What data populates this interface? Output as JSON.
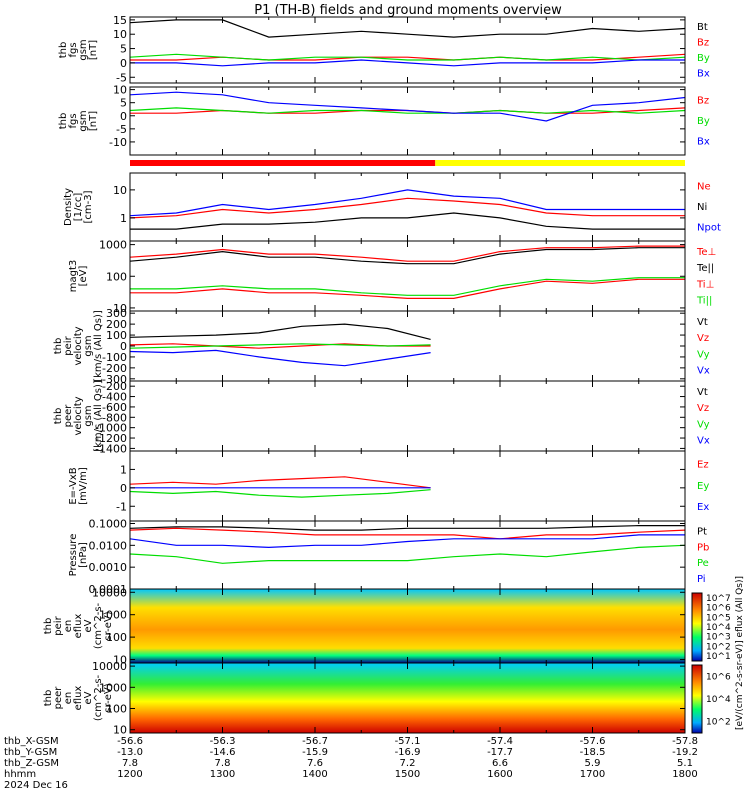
{
  "title": "P1 (TH-B) fields and ground moments overview",
  "colors": {
    "black": "#000000",
    "red": "#ff0000",
    "green": "#00dd00",
    "blue": "#0000ff",
    "yellow": "#ffff00"
  },
  "panels": [
    {
      "id": "fgs-btot",
      "ylabel": [
        "thb",
        "fgs",
        "gsm",
        "[nT]"
      ],
      "yticks": [
        "15",
        "10",
        "5",
        "0",
        "-5"
      ],
      "ticknums": [
        15,
        10,
        5,
        0,
        -5
      ],
      "ylim": [
        -7,
        16
      ],
      "legend": [
        {
          "text": "Bt",
          "color": "#000000"
        },
        {
          "text": "Bz",
          "color": "#ff0000"
        },
        {
          "text": "By",
          "color": "#00dd00"
        },
        {
          "text": "Bx",
          "color": "#0000ff"
        }
      ]
    },
    {
      "id": "fgs-comp",
      "ylabel": [
        "thb",
        "fgs",
        "gsm",
        "[nT]"
      ],
      "yticks": [
        "10",
        "5",
        "0",
        "-5",
        "-10"
      ],
      "ticknums": [
        10,
        5,
        0,
        -5,
        -10
      ],
      "ylim": [
        -15,
        11
      ],
      "legend": [
        {
          "text": "Bz",
          "color": "#ff0000"
        },
        {
          "text": "By",
          "color": "#00dd00"
        },
        {
          "text": "Bx",
          "color": "#0000ff"
        }
      ]
    },
    {
      "id": "density",
      "ylabel": [
        "Density",
        "[1/cc]",
        "[cm-3]"
      ],
      "yticks": [
        "10",
        "1"
      ],
      "ticknums": [
        10,
        1
      ],
      "log": true,
      "ylim": [
        0.15,
        40
      ],
      "legend": [
        {
          "text": "Ne",
          "color": "#ff0000"
        },
        {
          "text": "Ni",
          "color": "#000000"
        },
        {
          "text": "Npot",
          "color": "#0000ff"
        }
      ]
    },
    {
      "id": "temp",
      "ylabel": [
        "magt3",
        "[eV]"
      ],
      "yticks": [
        "1000",
        "100",
        "10"
      ],
      "ticknums": [
        1000,
        100,
        10
      ],
      "log": true,
      "ylim": [
        8,
        1300
      ],
      "legend": [
        {
          "text": "Te⊥",
          "color": "#ff0000"
        },
        {
          "text": "Te||",
          "color": "#000000"
        },
        {
          "text": "Ti⊥",
          "color": "#ff0000"
        },
        {
          "text": "Ti||",
          "color": "#00dd00"
        }
      ]
    },
    {
      "id": "peir-vel",
      "ylabel": [
        "thb",
        "peir",
        "velocity",
        "gsm",
        "[km/s (All Qs)]"
      ],
      "yticks": [
        "300",
        "200",
        "100",
        "0",
        "-100",
        "-200",
        "-300"
      ],
      "ticknums": [
        300,
        200,
        100,
        0,
        -100,
        -200,
        -300
      ],
      "ylim": [
        -320,
        320
      ],
      "legend": [
        {
          "text": "Vt",
          "color": "#000000"
        },
        {
          "text": "Vz",
          "color": "#ff0000"
        },
        {
          "text": "Vy",
          "color": "#00dd00"
        },
        {
          "text": "Vx",
          "color": "#0000ff"
        }
      ]
    },
    {
      "id": "peer-vel",
      "ylabel": [
        "thb",
        "peer",
        "velocity",
        "gsm",
        "[km/s (All Qs)]"
      ],
      "yticks": [
        "-200",
        "-400",
        "-600",
        "-800",
        "-1000",
        "-1200",
        "-1400"
      ],
      "ticknums": [
        -200,
        -400,
        -600,
        -800,
        -1000,
        -1200,
        -1400
      ],
      "ylim": [
        -1450,
        -100
      ],
      "legend": [
        {
          "text": "Vt",
          "color": "#000000"
        },
        {
          "text": "Vz",
          "color": "#ff0000"
        },
        {
          "text": "Vy",
          "color": "#00dd00"
        },
        {
          "text": "Vx",
          "color": "#0000ff"
        }
      ]
    },
    {
      "id": "efield",
      "ylabel": [
        "E=-VxB",
        "[mV/m]"
      ],
      "yticks": [
        "1",
        "0",
        "-1"
      ],
      "ticknums": [
        1,
        0,
        -1
      ],
      "ylim": [
        -1.8,
        2
      ],
      "legend": [
        {
          "text": "Ez",
          "color": "#ff0000"
        },
        {
          "text": "Ey",
          "color": "#00dd00"
        },
        {
          "text": "Ex",
          "color": "#0000ff"
        }
      ]
    },
    {
      "id": "pressure",
      "ylabel": [
        "Pressure",
        "[nPa]"
      ],
      "yticks": [
        "0.1000",
        "0.0100",
        "0.0010",
        "0.0001"
      ],
      "ticknums": [
        0.1,
        0.01,
        0.001,
        0.0001
      ],
      "log": true,
      "ylim": [
        0.0001,
        0.13
      ],
      "legend": [
        {
          "text": "Pt",
          "color": "#000000"
        },
        {
          "text": "Pb",
          "color": "#ff0000"
        },
        {
          "text": "Pe",
          "color": "#00dd00"
        },
        {
          "text": "Pi",
          "color": "#0000ff"
        }
      ]
    },
    {
      "id": "peir-spec",
      "ylabel": [
        "thb",
        "peir",
        "en",
        "eflux",
        "eV",
        "(cm^2-s-",
        "sr-eV)"
      ],
      "yticks": [
        "10000",
        "1000",
        "100",
        "10"
      ],
      "ticknums": [
        10000,
        1000,
        100,
        10
      ],
      "log": true,
      "ylim": [
        7,
        14000
      ],
      "spectrogram": true
    },
    {
      "id": "peer-spec",
      "ylabel": [
        "thb",
        "peer",
        "en",
        "eflux",
        "eV",
        "(cm^2-s-",
        "sr-eV)"
      ],
      "yticks": [
        "10000",
        "1000",
        "100",
        "10"
      ],
      "ticknums": [
        10000,
        1000,
        100,
        10
      ],
      "log": true,
      "ylim": [
        7,
        14000
      ],
      "spectrogram": true
    }
  ],
  "colorbar1_labels": [
    "10^7",
    "10^6",
    "10^5",
    "10^4",
    "10^3",
    "10^2",
    "10^1"
  ],
  "colorbar2_labels": [
    "10^6",
    "10^4",
    "10^2"
  ],
  "colorbar_title": "[eV/(cm^2-s-sr-eV)] eflux (All Qs)]",
  "xaxis_rows": [
    {
      "label": "thb_X-GSM",
      "values": [
        "-56.6",
        "-56.3",
        "-56.7",
        "-57.1",
        "-57.4",
        "-57.6",
        "-57.8"
      ]
    },
    {
      "label": "thb_Y-GSM",
      "values": [
        "-13.0",
        "-14.6",
        "-15.9",
        "-16.9",
        "-17.7",
        "-18.5",
        "-19.2"
      ]
    },
    {
      "label": "thb_Z-GSM",
      "values": [
        "7.8",
        "7.8",
        "7.6",
        "7.2",
        "6.6",
        "5.9",
        "5.1"
      ]
    },
    {
      "label": "hhmm",
      "values": [
        "1200",
        "1300",
        "1400",
        "1500",
        "1600",
        "1700",
        "1800"
      ]
    }
  ],
  "date_label": "2024 Dec 16",
  "chart_data": {
    "type": "line",
    "title": "P1 (TH-B) fields and ground moments overview",
    "x_hhmm": [
      "1200",
      "1300",
      "1400",
      "1500",
      "1600",
      "1700",
      "1800"
    ],
    "x_hours": [
      12,
      12.5,
      13,
      13.5,
      14,
      14.5,
      15,
      15.5,
      16,
      16.5,
      17,
      17.5,
      18
    ],
    "bar_segments": [
      {
        "from": 12,
        "to": 15.3,
        "color": "#ff0000"
      },
      {
        "from": 15.3,
        "to": 18,
        "color": "#ffff00"
      }
    ],
    "moments_end_hour": 15.25,
    "series": {
      "fgs-btot": [
        {
          "name": "Bt",
          "color": "#000000",
          "values": [
            14,
            15,
            15,
            9,
            10,
            11,
            10,
            9,
            10,
            10,
            12,
            11,
            12
          ]
        },
        {
          "name": "Bz",
          "color": "#ff0000",
          "values": [
            1,
            1,
            2,
            1,
            1,
            2,
            2,
            1,
            2,
            1,
            1,
            2,
            3
          ]
        },
        {
          "name": "By",
          "color": "#00dd00",
          "values": [
            2,
            3,
            2,
            1,
            2,
            2,
            1,
            1,
            2,
            1,
            2,
            1,
            2
          ]
        },
        {
          "name": "Bx",
          "color": "#0000ff",
          "values": [
            0,
            0,
            -1,
            0,
            0,
            1,
            0,
            -1,
            0,
            0,
            0,
            1,
            1
          ]
        }
      ],
      "fgs-comp": [
        {
          "name": "Bz",
          "color": "#ff0000",
          "values": [
            1,
            1,
            2,
            1,
            1,
            2,
            2,
            1,
            2,
            1,
            1,
            2,
            3
          ]
        },
        {
          "name": "By",
          "color": "#00dd00",
          "values": [
            2,
            3,
            2,
            1,
            2,
            2,
            1,
            1,
            2,
            1,
            2,
            1,
            2
          ]
        },
        {
          "name": "Bx",
          "color": "#0000ff",
          "values": [
            8,
            9,
            8,
            5,
            4,
            3,
            2,
            1,
            1,
            -2,
            4,
            5,
            7
          ]
        }
      ],
      "density": [
        {
          "name": "Ne",
          "color": "#ff0000",
          "values": [
            1,
            1.2,
            2,
            1.5,
            2,
            3,
            5,
            4,
            3,
            1.5,
            1.2,
            1.2,
            1.2
          ]
        },
        {
          "name": "Ni",
          "color": "#000000",
          "values": [
            0.4,
            0.4,
            0.6,
            0.6,
            0.7,
            1,
            1,
            1.5,
            1,
            0.5,
            0.4,
            0.4,
            0.4
          ]
        },
        {
          "name": "Npot",
          "color": "#0000ff",
          "values": [
            1.2,
            1.5,
            3,
            2,
            3,
            5,
            10,
            6,
            5,
            2,
            2,
            2,
            2
          ]
        }
      ],
      "temp": [
        {
          "name": "Te⊥",
          "color": "#ff0000",
          "values": [
            400,
            500,
            700,
            500,
            500,
            400,
            300,
            300,
            600,
            800,
            800,
            900,
            900
          ]
        },
        {
          "name": "Te||",
          "color": "#000000",
          "values": [
            300,
            400,
            600,
            400,
            400,
            300,
            250,
            250,
            500,
            700,
            700,
            800,
            800
          ]
        },
        {
          "name": "Ti⊥",
          "color": "#ff0000",
          "values": [
            30,
            30,
            40,
            30,
            30,
            25,
            20,
            20,
            40,
            70,
            60,
            80,
            80
          ]
        },
        {
          "name": "Ti||",
          "color": "#00dd00",
          "values": [
            40,
            40,
            50,
            40,
            40,
            30,
            25,
            25,
            50,
            80,
            70,
            90,
            90
          ]
        }
      ],
      "peir-vel": [
        {
          "name": "Vt",
          "color": "#000000",
          "values": [
            80,
            90,
            100,
            120,
            180,
            200,
            160,
            60
          ]
        },
        {
          "name": "Vz",
          "color": "#ff0000",
          "values": [
            10,
            20,
            0,
            -20,
            0,
            20,
            0,
            0
          ]
        },
        {
          "name": "Vy",
          "color": "#00dd00",
          "values": [
            -20,
            -10,
            0,
            10,
            20,
            10,
            0,
            10
          ]
        },
        {
          "name": "Vx",
          "color": "#0000ff",
          "values": [
            -50,
            -60,
            -40,
            -100,
            -150,
            -180,
            -120,
            -60
          ]
        }
      ],
      "peer-vel": [],
      "efield": [
        {
          "name": "Ez",
          "color": "#ff0000",
          "values": [
            0.2,
            0.3,
            0.2,
            0.4,
            0.5,
            0.6,
            0.3,
            0
          ]
        },
        {
          "name": "Ey",
          "color": "#00dd00",
          "values": [
            -0.2,
            -0.3,
            -0.2,
            -0.4,
            -0.5,
            -0.4,
            -0.3,
            -0.1
          ]
        },
        {
          "name": "Ex",
          "color": "#0000ff",
          "values": [
            0,
            0,
            0,
            0,
            0,
            0,
            0,
            0
          ]
        }
      ],
      "pressure": [
        {
          "name": "Pt",
          "color": "#000000",
          "values": [
            0.06,
            0.07,
            0.07,
            0.06,
            0.05,
            0.05,
            0.06,
            0.06,
            0.06,
            0.06,
            0.07,
            0.08,
            0.08
          ]
        },
        {
          "name": "Pb",
          "color": "#ff0000",
          "values": [
            0.05,
            0.06,
            0.05,
            0.04,
            0.03,
            0.03,
            0.03,
            0.03,
            0.02,
            0.03,
            0.03,
            0.04,
            0.05
          ]
        },
        {
          "name": "Pe",
          "color": "#00dd00",
          "values": [
            0.004,
            0.003,
            0.0015,
            0.002,
            0.002,
            0.002,
            0.002,
            0.003,
            0.004,
            0.003,
            0.005,
            0.008,
            0.01
          ]
        },
        {
          "name": "Pi",
          "color": "#0000ff",
          "values": [
            0.02,
            0.01,
            0.01,
            0.008,
            0.01,
            0.01,
            0.015,
            0.02,
            0.02,
            0.02,
            0.02,
            0.03,
            0.03
          ]
        }
      ]
    }
  }
}
